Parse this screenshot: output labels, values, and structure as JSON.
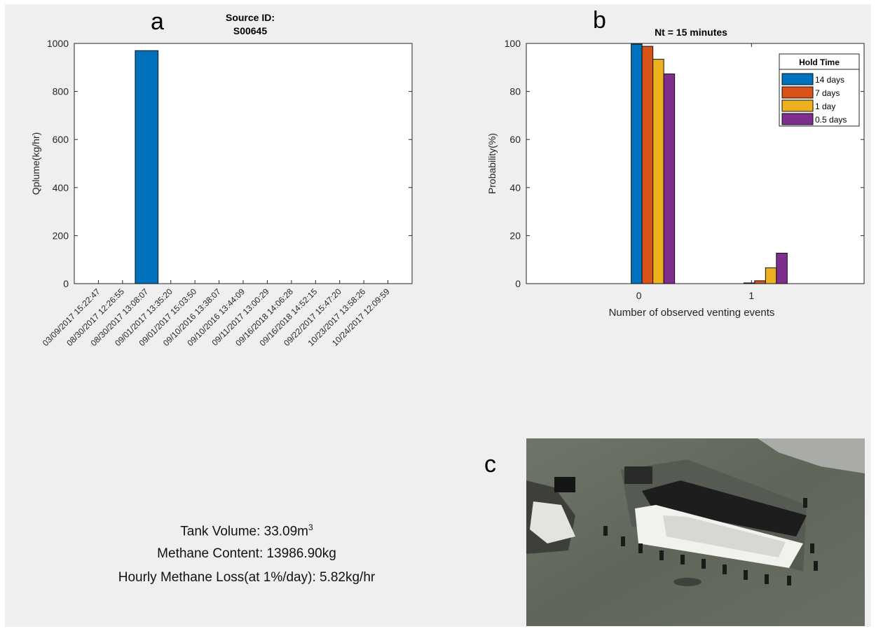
{
  "panel_letters": {
    "a": "a",
    "b": "b",
    "c": "c"
  },
  "colors": {
    "series1": "#0072BD",
    "series2": "#D95319",
    "series3": "#EDB120",
    "series4": "#7E2F8E",
    "panel_bg": "#efefef",
    "axes_bg": "#ffffff"
  },
  "chart_data": [
    {
      "id": "a",
      "type": "bar",
      "title_lines": [
        "Source ID:",
        "S00645"
      ],
      "xlabel": "",
      "ylabel": "Qplume(kg/hr)",
      "ylim": [
        0,
        1000
      ],
      "yticks": [
        0,
        200,
        400,
        600,
        800,
        1000
      ],
      "categories": [
        "03/09/2017 15:22:47",
        "08/30/2017 12:26:55",
        "08/30/2017 13:08:07",
        "09/01/2017 13:35:20",
        "09/01/2017 15:03:50",
        "09/10/2016 13:38:07",
        "09/10/2016 13:44:09",
        "09/11/2017 13:00:29",
        "09/16/2018 14:06:28",
        "09/16/2018 14:52:15",
        "09/22/2017 15:47:20",
        "10/23/2017 13:58:26",
        "10/24/2017 12:09:59"
      ],
      "values": [
        0,
        0,
        970,
        0,
        0,
        0,
        0,
        0,
        0,
        0,
        0,
        0,
        0
      ],
      "grid": false
    },
    {
      "id": "b",
      "type": "bar",
      "title": "Nt = 15 minutes",
      "xlabel": "Number of observed venting events",
      "ylabel": "Probability(%)",
      "ylim": [
        0,
        100
      ],
      "yticks": [
        0,
        20,
        40,
        60,
        80,
        100
      ],
      "categories": [
        "0",
        "1"
      ],
      "legend_title": "Hold Time",
      "legend_position": "top-right",
      "series": [
        {
          "name": "14 days",
          "values": [
            99.7,
            0.3
          ]
        },
        {
          "name": "7 days",
          "values": [
            98.8,
            1.2
          ]
        },
        {
          "name": "1 day",
          "values": [
            93.4,
            6.6
          ]
        },
        {
          "name": "0.5 days",
          "values": [
            87.3,
            12.7
          ]
        }
      ],
      "grid": false
    }
  ],
  "info": {
    "tank_volume_label": "Tank Volume: 33.09m",
    "tank_volume_sup": "3",
    "methane_content": "Methane Content: 13986.90kg",
    "hourly_loss": "Hourly Methane Loss(at 1%/day): 5.82kg/hr"
  }
}
